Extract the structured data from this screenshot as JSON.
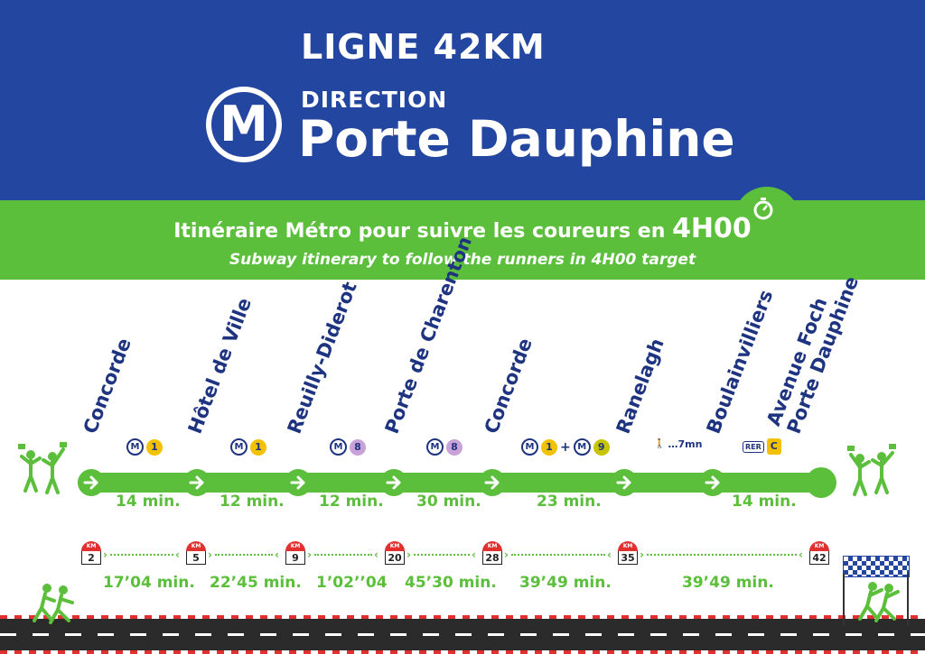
{
  "header": {
    "title": "LIGNE 42KM",
    "metro_letter": "M",
    "direction_label": "DIRECTION",
    "destination": "Porte Dauphine"
  },
  "banner": {
    "subtitle_fr": "Itinéraire Métro pour suivre les coureurs en",
    "subtitle_fr_highlight": "4H00",
    "subtitle_en": "Subway itinerary to follow the runners in 4H00 target",
    "icon": "stopwatch-icon"
  },
  "colors": {
    "blue": "#2346a0",
    "green": "#5cbf3c",
    "navy": "#1e3480",
    "line1": "#f2c200",
    "line8": "#c8a2d8",
    "line9": "#c8c400",
    "km_red": "#e03030"
  },
  "stations": [
    {
      "name": "Concorde",
      "connections": [
        {
          "type": "metro",
          "line": "1"
        }
      ]
    },
    {
      "name": "Hôtel de Ville",
      "connections": [
        {
          "type": "metro",
          "line": "1"
        }
      ]
    },
    {
      "name": "Reuilly-Diderot",
      "connections": [
        {
          "type": "metro",
          "line": "8"
        }
      ]
    },
    {
      "name": "Porte de Charenton",
      "connections": [
        {
          "type": "metro",
          "line": "8"
        }
      ]
    },
    {
      "name": "Concorde",
      "connections": [
        {
          "type": "metro",
          "line": "1"
        },
        {
          "type": "plus",
          "line": "+"
        },
        {
          "type": "metro",
          "line": "9"
        }
      ]
    },
    {
      "name": "Ranelagh",
      "connections": [
        {
          "type": "walk",
          "line": "…7mn"
        }
      ]
    },
    {
      "name": "Boulainvilliers",
      "connections": [
        {
          "type": "rer",
          "line": "C"
        }
      ]
    },
    {
      "name": "Avenue Foch",
      "name2": "Porte Dauphine",
      "connections": []
    }
  ],
  "metro_badge": "M",
  "rer_label": "RER",
  "travel_times": [
    "14 min.",
    "12 min.",
    "12 min.",
    "30 min.",
    "23 min.",
    "14 min."
  ],
  "km_label": "KM",
  "km_markers": [
    "2",
    "5",
    "9",
    "20",
    "28",
    "35",
    "42"
  ],
  "splits": [
    "17’04 min.",
    "22’45 min.",
    "1’02’’04",
    "45’30 min.",
    "39’49 min.",
    "39’49 min."
  ]
}
